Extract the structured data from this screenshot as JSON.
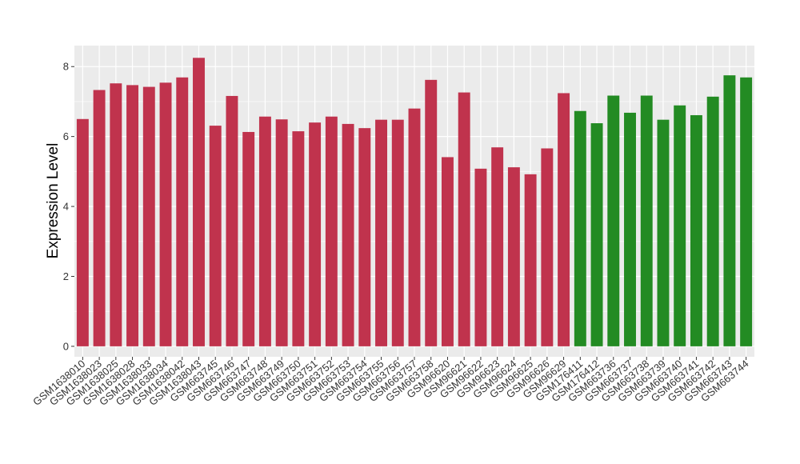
{
  "chart_data": {
    "type": "bar",
    "title": "",
    "xlabel": "",
    "ylabel": "Expression Level",
    "ylim": [
      -0.3,
      8.6
    ],
    "yticks": [
      0,
      2,
      4,
      6,
      8
    ],
    "grid": true,
    "categories": [
      "GSM1638010",
      "GSM1638023",
      "GSM1638025",
      "GSM1638028",
      "GSM1638033",
      "GSM1638034",
      "GSM1638042",
      "GSM1638043",
      "GSM663745",
      "GSM663746",
      "GSM663747",
      "GSM663748",
      "GSM663749",
      "GSM663750",
      "GSM663751",
      "GSM663752",
      "GSM663753",
      "GSM663754",
      "GSM663755",
      "GSM663756",
      "GSM663757",
      "GSM663758",
      "GSM96620",
      "GSM96621",
      "GSM96622",
      "GSM96623",
      "GSM96624",
      "GSM96625",
      "GSM96626",
      "GSM96629",
      "GSM176411",
      "GSM176412",
      "GSM663736",
      "GSM663737",
      "GSM663738",
      "GSM663739",
      "GSM663740",
      "GSM663741",
      "GSM663742",
      "GSM663743",
      "GSM663744"
    ],
    "values": [
      6.5,
      7.33,
      7.52,
      7.47,
      7.42,
      7.54,
      7.69,
      8.25,
      6.31,
      7.16,
      6.13,
      6.57,
      6.49,
      6.15,
      6.4,
      6.57,
      6.36,
      6.24,
      6.48,
      6.48,
      6.8,
      7.62,
      5.41,
      7.26,
      5.08,
      5.69,
      5.12,
      4.92,
      5.66,
      7.24,
      6.73,
      6.38,
      7.17,
      6.68,
      7.17,
      6.48,
      6.89,
      6.61,
      7.14,
      7.75,
      7.69
    ],
    "groups": [
      "red",
      "red",
      "red",
      "red",
      "red",
      "red",
      "red",
      "red",
      "red",
      "red",
      "red",
      "red",
      "red",
      "red",
      "red",
      "red",
      "red",
      "red",
      "red",
      "red",
      "red",
      "red",
      "red",
      "red",
      "red",
      "red",
      "red",
      "red",
      "red",
      "red",
      "green",
      "green",
      "green",
      "green",
      "green",
      "green",
      "green",
      "green",
      "green",
      "green",
      "green"
    ],
    "colors": {
      "red": "#c0334d",
      "green": "#238b23"
    },
    "panel_bg": "#ebebeb",
    "grid_color": "#ffffff"
  }
}
